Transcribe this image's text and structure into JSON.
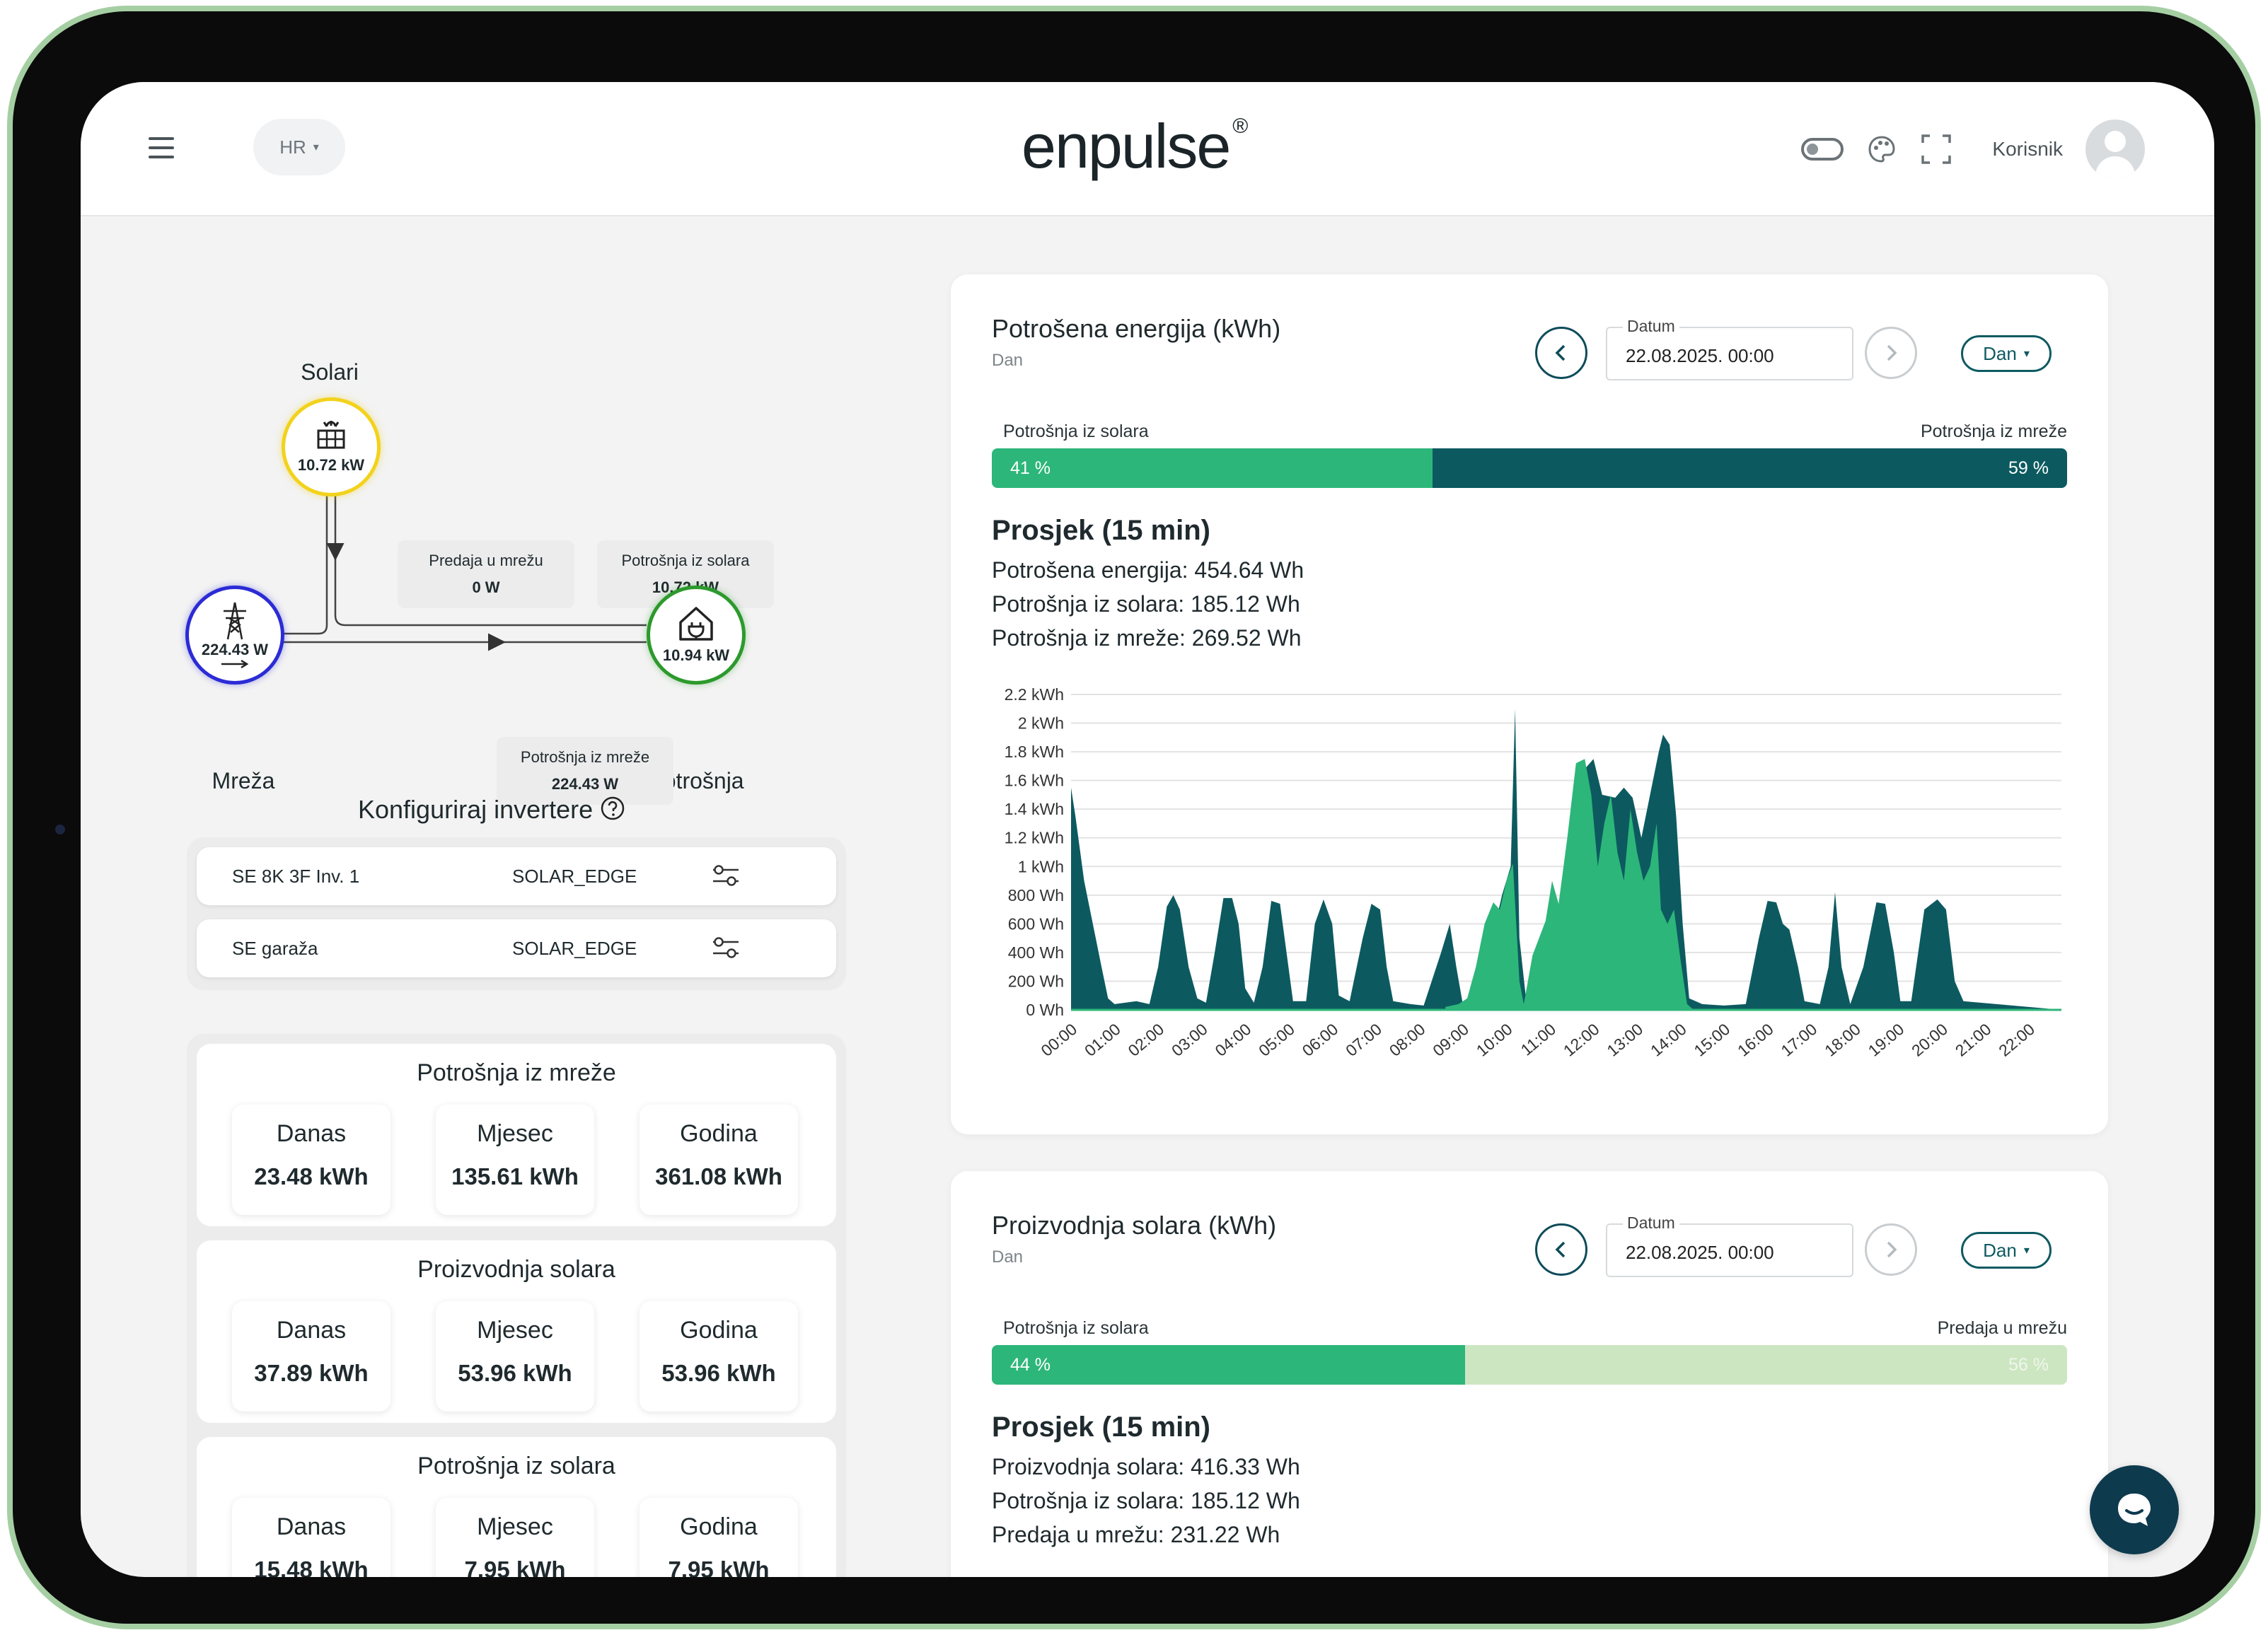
{
  "header": {
    "lang": "HR",
    "logo": "enpulse",
    "logo_mark": "®",
    "user_label": "Korisnik"
  },
  "flow": {
    "solar": {
      "title": "Solari",
      "value": "10.72 kW"
    },
    "grid": {
      "title": "Mreža",
      "value": "224.43 W"
    },
    "home": {
      "title": "Potrošnja",
      "value": "10.94 kW"
    },
    "labels": {
      "export": {
        "name": "Predaja u mrežu",
        "value": "0 W"
      },
      "solar_use": {
        "name": "Potrošnja iz solara",
        "value": "10.72 kW"
      },
      "grid_use": {
        "name": "Potrošnja iz mreže",
        "value": "224.43 W"
      }
    },
    "colors": {
      "solar": "#f2d21c",
      "grid": "#2b2bd6",
      "home": "#2c9a2c"
    }
  },
  "inverters": {
    "title": "Konfiguriraj invertere",
    "rows": [
      {
        "name": "SE 8K 3F Inv. 1",
        "type": "SOLAR_EDGE"
      },
      {
        "name": "SE garaža",
        "type": "SOLAR_EDGE"
      }
    ]
  },
  "stats": [
    {
      "title": "Potrošnja iz mreže",
      "items": [
        {
          "label": "Danas",
          "value": "23.48 kWh"
        },
        {
          "label": "Mjesec",
          "value": "135.61 kWh"
        },
        {
          "label": "Godina",
          "value": "361.08 kWh"
        }
      ]
    },
    {
      "title": "Proizvodnja solara",
      "items": [
        {
          "label": "Danas",
          "value": "37.89 kWh"
        },
        {
          "label": "Mjesec",
          "value": "53.96 kWh"
        },
        {
          "label": "Godina",
          "value": "53.96 kWh"
        }
      ]
    },
    {
      "title": "Potrošnja iz solara",
      "items": [
        {
          "label": "Danas",
          "value": "15.48 kWh"
        },
        {
          "label": "Mjesec",
          "value": "7.95 kWh"
        },
        {
          "label": "Godina",
          "value": "7.95 kWh"
        }
      ]
    }
  ],
  "consumption": {
    "title": "Potrošena energija (kWh)",
    "subtitle": "Dan",
    "date_label": "Datum",
    "date_value": "22.08.2025. 00:00",
    "period": "Dan",
    "bar": {
      "left_label": "Potrošnja iz solara",
      "right_label": "Potrošnja iz mreže",
      "left_pct": "41 %",
      "right_pct": "59 %",
      "left_frac": 0.41,
      "left_color": "#2db67a",
      "right_color": "#0c5a60"
    },
    "avg_title": "Prosjek (15 min)",
    "avg_lines": [
      "Potrošena energija: 454.64 Wh",
      "Potrošnja iz solara: 185.12 Wh",
      "Potrošnja iz mreže: 269.52 Wh"
    ]
  },
  "production": {
    "title": "Proizvodnja solara (kWh)",
    "subtitle": "Dan",
    "date_label": "Datum",
    "date_value": "22.08.2025. 00:00",
    "period": "Dan",
    "bar": {
      "left_label": "Potrošnja iz solara",
      "right_label": "Predaja u mrežu",
      "left_pct": "44 %",
      "right_pct": "56 %",
      "left_frac": 0.44,
      "left_color": "#2db67a",
      "right_color": "#cde6c2"
    },
    "avg_title": "Prosjek (15 min)",
    "avg_lines": [
      "Proizvodnja solara: 416.33 Wh",
      "Potrošnja iz solara: 185.12 Wh",
      "Predaja u mrežu: 231.22 Wh"
    ]
  },
  "chart_data": {
    "type": "area",
    "x_labels": [
      "00:00",
      "01:00",
      "02:00",
      "03:00",
      "04:00",
      "05:00",
      "06:00",
      "07:00",
      "08:00",
      "09:00",
      "10:00",
      "11:00",
      "12:00",
      "13:00",
      "14:00",
      "15:00",
      "16:00",
      "17:00",
      "18:00",
      "19:00",
      "20:00",
      "21:00",
      "22:00"
    ],
    "y_ticks": [
      "0 Wh",
      "200 Wh",
      "400 Wh",
      "600 Wh",
      "800 Wh",
      "1 kWh",
      "1.2 kWh",
      "1.4 kWh",
      "1.6 kWh",
      "1.8 kWh",
      "2 kWh",
      "2.2 kWh"
    ],
    "ylim": [
      0,
      2200
    ],
    "xlim": [
      0,
      22.75
    ],
    "grid": true,
    "series": [
      {
        "color": "#0c5a60",
        "points": [
          [
            0,
            1550
          ],
          [
            0.1,
            1350
          ],
          [
            0.3,
            900
          ],
          [
            0.5,
            600
          ],
          [
            0.7,
            300
          ],
          [
            0.85,
            80
          ],
          [
            1,
            40
          ],
          [
            1.5,
            60
          ],
          [
            1.8,
            40
          ],
          [
            2,
            300
          ],
          [
            2.2,
            720
          ],
          [
            2.35,
            800
          ],
          [
            2.5,
            700
          ],
          [
            2.7,
            300
          ],
          [
            2.9,
            80
          ],
          [
            3.1,
            50
          ],
          [
            3.3,
            400
          ],
          [
            3.5,
            780
          ],
          [
            3.7,
            780
          ],
          [
            3.85,
            600
          ],
          [
            4,
            150
          ],
          [
            4.2,
            50
          ],
          [
            4.4,
            300
          ],
          [
            4.6,
            760
          ],
          [
            4.8,
            740
          ],
          [
            4.95,
            400
          ],
          [
            5.1,
            60
          ],
          [
            5.4,
            60
          ],
          [
            5.6,
            600
          ],
          [
            5.8,
            770
          ],
          [
            6,
            600
          ],
          [
            6.15,
            100
          ],
          [
            6.4,
            60
          ],
          [
            6.7,
            500
          ],
          [
            6.9,
            740
          ],
          [
            7.1,
            700
          ],
          [
            7.25,
            300
          ],
          [
            7.4,
            60
          ],
          [
            7.8,
            40
          ],
          [
            8.1,
            30
          ],
          [
            8.5,
            400
          ],
          [
            8.7,
            600
          ],
          [
            8.85,
            300
          ],
          [
            9,
            40
          ],
          [
            9.3,
            50
          ],
          [
            9.6,
            400
          ],
          [
            9.9,
            800
          ],
          [
            10.1,
            1000
          ],
          [
            10.2,
            2100
          ],
          [
            10.3,
            500
          ],
          [
            10.45,
            80
          ],
          [
            10.7,
            300
          ],
          [
            11,
            650
          ],
          [
            11.2,
            700
          ],
          [
            11.5,
            1200
          ],
          [
            11.8,
            1680
          ],
          [
            12,
            1750
          ],
          [
            12.2,
            1500
          ],
          [
            12.5,
            1480
          ],
          [
            12.7,
            1550
          ],
          [
            12.9,
            1480
          ],
          [
            13.1,
            1200
          ],
          [
            13.3,
            1500
          ],
          [
            13.5,
            1800
          ],
          [
            13.6,
            1920
          ],
          [
            13.75,
            1850
          ],
          [
            13.9,
            1350
          ],
          [
            14.05,
            600
          ],
          [
            14.2,
            80
          ],
          [
            14.5,
            40
          ],
          [
            15,
            30
          ],
          [
            15.5,
            40
          ],
          [
            15.8,
            500
          ],
          [
            16,
            760
          ],
          [
            16.2,
            750
          ],
          [
            16.35,
            600
          ],
          [
            16.5,
            560
          ],
          [
            16.7,
            300
          ],
          [
            16.85,
            60
          ],
          [
            17.2,
            40
          ],
          [
            17.4,
            300
          ],
          [
            17.55,
            820
          ],
          [
            17.7,
            300
          ],
          [
            17.9,
            40
          ],
          [
            18.2,
            300
          ],
          [
            18.5,
            750
          ],
          [
            18.7,
            740
          ],
          [
            18.9,
            400
          ],
          [
            19.05,
            60
          ],
          [
            19.3,
            60
          ],
          [
            19.6,
            700
          ],
          [
            19.9,
            770
          ],
          [
            20.1,
            700
          ],
          [
            20.3,
            200
          ],
          [
            20.5,
            60
          ],
          [
            22.75,
            0
          ]
        ]
      },
      {
        "color": "#2db67a",
        "points": [
          [
            8.6,
            20
          ],
          [
            8.9,
            40
          ],
          [
            9.1,
            80
          ],
          [
            9.3,
            300
          ],
          [
            9.5,
            600
          ],
          [
            9.7,
            750
          ],
          [
            9.85,
            700
          ],
          [
            10,
            900
          ],
          [
            10.15,
            1020
          ],
          [
            10.3,
            200
          ],
          [
            10.4,
            40
          ],
          [
            10.6,
            380
          ],
          [
            10.9,
            620
          ],
          [
            11.05,
            900
          ],
          [
            11.2,
            740
          ],
          [
            11.4,
            1200
          ],
          [
            11.6,
            1720
          ],
          [
            11.8,
            1750
          ],
          [
            11.95,
            1500
          ],
          [
            12.1,
            1000
          ],
          [
            12.25,
            1300
          ],
          [
            12.4,
            1500
          ],
          [
            12.55,
            1100
          ],
          [
            12.7,
            900
          ],
          [
            12.85,
            1400
          ],
          [
            13,
            1100
          ],
          [
            13.15,
            900
          ],
          [
            13.3,
            1000
          ],
          [
            13.45,
            1300
          ],
          [
            13.55,
            700
          ],
          [
            13.7,
            600
          ],
          [
            13.85,
            700
          ],
          [
            14,
            350
          ],
          [
            14.15,
            40
          ],
          [
            14.3,
            0
          ]
        ]
      }
    ]
  }
}
